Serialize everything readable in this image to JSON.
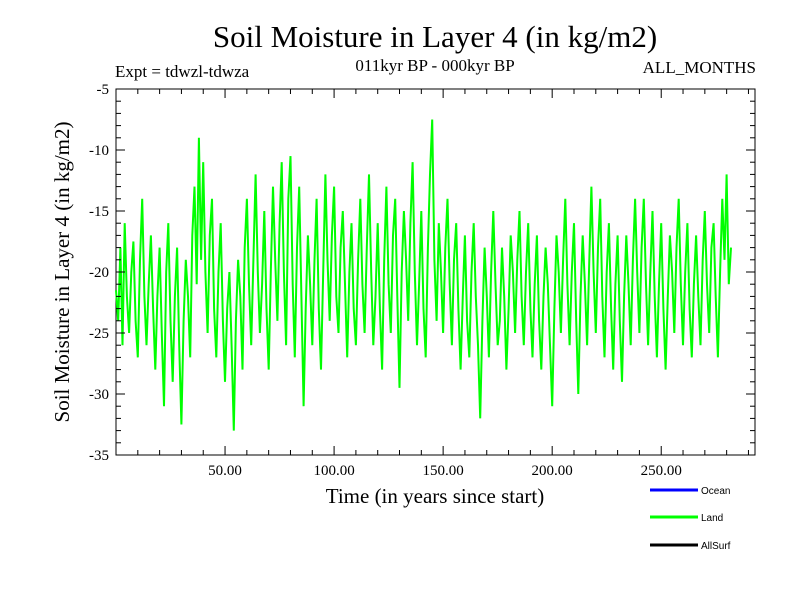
{
  "chart_data": {
    "type": "line",
    "title": "Soil Moisture in Layer 4 (in kg/m2)",
    "subtitle_left": "Expt = tdwzl-tdwza",
    "subtitle_center": "011kyr BP - 000kyr BP",
    "subtitle_right": "ALL_MONTHS",
    "xlabel": "Time (in years since start)",
    "ylabel": "Soil Moisture in Layer 4 (in kg/m2)",
    "xlim": [
      0,
      293
    ],
    "ylim": [
      -35,
      -5
    ],
    "x_ticks": [
      50,
      100,
      150,
      200,
      250
    ],
    "x_tick_labels": [
      "50.00",
      "100.00",
      "150.00",
      "200.00",
      "250.00"
    ],
    "y_ticks": [
      -35,
      -30,
      -25,
      -20,
      -15,
      -10,
      -5
    ],
    "y_tick_labels": [
      "-35",
      "-30",
      "-25",
      "-20",
      "-15",
      "-10",
      "-5"
    ],
    "legend": [
      {
        "name": "Ocean",
        "color": "#0000ff"
      },
      {
        "name": "Land",
        "color": "#00ff00"
      },
      {
        "name": "AllSurf",
        "color": "#000000"
      }
    ],
    "series": [
      {
        "name": "Land",
        "color": "#00ff00",
        "x_start": 0,
        "x_step": 1,
        "values": [
          -21.5,
          -24.0,
          -18.0,
          -26.0,
          -16.0,
          -22.0,
          -25.0,
          -20.0,
          -17.5,
          -24.0,
          -27.0,
          -19.0,
          -14.0,
          -22.0,
          -26.0,
          -21.0,
          -17.0,
          -23.0,
          -28.0,
          -22.0,
          -18.0,
          -25.0,
          -31.0,
          -20.0,
          -16.0,
          -24.0,
          -29.0,
          -22.0,
          -18.0,
          -26.0,
          -32.5,
          -24.0,
          -19.0,
          -22.0,
          -27.0,
          -17.0,
          -13.0,
          -21.0,
          -9.0,
          -19.0,
          -11.0,
          -20.0,
          -25.0,
          -17.0,
          -14.0,
          -23.0,
          -27.0,
          -20.0,
          -16.0,
          -24.0,
          -29.0,
          -23.0,
          -20.0,
          -26.0,
          -33.0,
          -24.0,
          -19.0,
          -22.0,
          -28.0,
          -18.0,
          -14.0,
          -21.0,
          -26.0,
          -19.0,
          -12.0,
          -20.0,
          -25.0,
          -21.0,
          -15.0,
          -23.0,
          -28.0,
          -20.0,
          -13.0,
          -19.0,
          -24.0,
          -16.0,
          -11.0,
          -20.0,
          -26.0,
          -14.0,
          -10.5,
          -21.0,
          -27.0,
          -18.0,
          -13.0,
          -22.0,
          -31.0,
          -23.0,
          -17.0,
          -21.0,
          -26.0,
          -19.0,
          -14.0,
          -23.0,
          -28.0,
          -20.0,
          -12.0,
          -19.0,
          -24.0,
          -17.0,
          -13.0,
          -22.0,
          -25.0,
          -18.0,
          -15.0,
          -21.0,
          -27.0,
          -20.0,
          -16.0,
          -23.0,
          -26.0,
          -19.0,
          -14.0,
          -21.0,
          -25.0,
          -18.0,
          -12.0,
          -20.0,
          -26.0,
          -22.0,
          -16.0,
          -23.0,
          -28.0,
          -19.0,
          -13.0,
          -21.0,
          -25.0,
          -17.0,
          -14.0,
          -22.0,
          -29.5,
          -20.0,
          -15.0,
          -19.0,
          -24.0,
          -16.0,
          -11.0,
          -20.0,
          -26.0,
          -21.0,
          -15.0,
          -23.0,
          -27.0,
          -18.0,
          -12.0,
          -7.5,
          -19.0,
          -24.0,
          -16.0,
          -20.0,
          -25.0,
          -18.0,
          -14.0,
          -21.0,
          -26.0,
          -19.0,
          -16.0,
          -23.0,
          -28.0,
          -22.0,
          -17.0,
          -24.0,
          -27.0,
          -20.0,
          -16.0,
          -22.0,
          -26.0,
          -32.0,
          -24.0,
          -18.0,
          -22.0,
          -27.0,
          -20.0,
          -15.0,
          -21.0,
          -26.0,
          -24.0,
          -18.0,
          -22.0,
          -28.0,
          -23.0,
          -17.0,
          -20.0,
          -25.0,
          -19.0,
          -15.0,
          -22.0,
          -26.0,
          -20.0,
          -16.0,
          -23.0,
          -27.0,
          -21.0,
          -17.0,
          -24.0,
          -28.0,
          -22.0,
          -18.0,
          -21.0,
          -26.0,
          -31.0,
          -23.0,
          -17.0,
          -20.0,
          -25.0,
          -19.0,
          -14.0,
          -21.0,
          -26.0,
          -20.0,
          -16.0,
          -24.0,
          -30.0,
          -22.0,
          -17.0,
          -21.0,
          -26.0,
          -19.0,
          -13.0,
          -20.0,
          -25.0,
          -18.0,
          -14.0,
          -22.0,
          -27.0,
          -20.0,
          -16.0,
          -23.0,
          -28.0,
          -21.0,
          -17.0,
          -24.0,
          -29.0,
          -22.0,
          -17.0,
          -21.0,
          -26.0,
          -19.0,
          -14.0,
          -20.0,
          -25.0,
          -18.0,
          -14.0,
          -21.0,
          -26.0,
          -20.0,
          -15.0,
          -22.0,
          -27.0,
          -21.0,
          -16.0,
          -23.0,
          -28.0,
          -22.0,
          -17.0,
          -20.0,
          -25.0,
          -18.0,
          -14.0,
          -21.0,
          -26.0,
          -20.0,
          -16.0,
          -23.0,
          -27.0,
          -21.0,
          -17.0,
          -22.0,
          -26.0,
          -19.0,
          -15.0,
          -21.0,
          -25.0,
          -18.0,
          -16.0,
          -22.0,
          -27.0,
          -20.0,
          -14.0,
          -19.0,
          -12.0,
          -21.0,
          -18.0
        ]
      }
    ]
  }
}
